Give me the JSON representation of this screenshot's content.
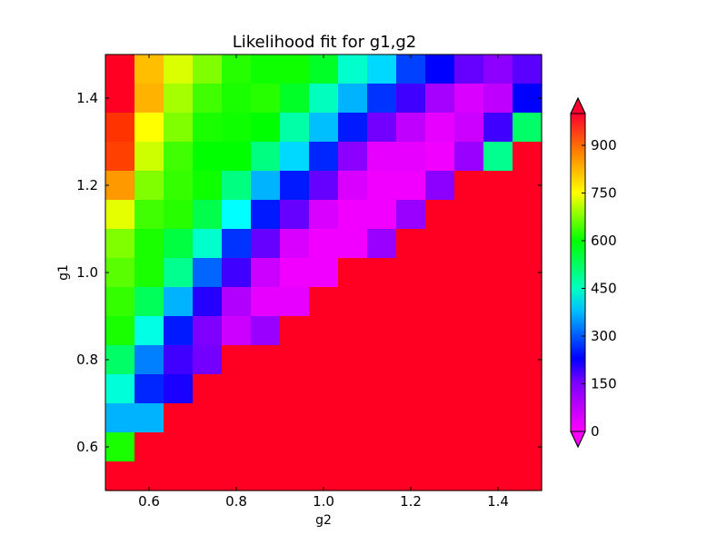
{
  "chart_data": {
    "type": "heatmap",
    "title": "Likelihood fit for g1,g2",
    "xlabel": "g2",
    "ylabel": "g1",
    "xlim": [
      0.5,
      1.5
    ],
    "ylim": [
      0.5,
      1.5
    ],
    "x_ticks": [
      "0.6",
      "0.8",
      "1.0",
      "1.2",
      "1.4"
    ],
    "y_ticks": [
      "0.6",
      "0.8",
      "1.0",
      "1.2",
      "1.4"
    ],
    "colorbar": {
      "min": 0,
      "max": 1000,
      "ticks": [
        "0",
        "150",
        "300",
        "450",
        "600",
        "750",
        "900"
      ],
      "colormap": "gist_rainbow_r",
      "extend": "both"
    },
    "grid": false,
    "g2_values": [
      0.533,
      0.6,
      0.667,
      0.733,
      0.8,
      0.867,
      0.933,
      1.0,
      1.067,
      1.133,
      1.2,
      1.267,
      1.333,
      1.4,
      1.467
    ],
    "g1_values": [
      1.467,
      1.4,
      1.333,
      1.267,
      1.2,
      1.133,
      1.067,
      1.0,
      0.933,
      0.867,
      0.8,
      0.733,
      0.667,
      0.6,
      0.533
    ],
    "z": [
      [
        1000,
        850,
        770,
        700,
        630,
        610,
        610,
        570,
        440,
        370,
        250,
        200,
        120,
        90,
        130
      ],
      [
        990,
        860,
        730,
        650,
        620,
        630,
        570,
        450,
        340,
        240,
        150,
        70,
        30,
        50,
        200
      ],
      [
        960,
        800,
        700,
        620,
        610,
        600,
        470,
        350,
        220,
        110,
        50,
        20,
        40,
        150,
        520
      ],
      [
        950,
        760,
        650,
        600,
        600,
        500,
        370,
        230,
        90,
        20,
        20,
        10,
        80,
        490,
        1000
      ],
      [
        880,
        700,
        640,
        610,
        500,
        340,
        220,
        120,
        30,
        10,
        10,
        90,
        1000,
        1000,
        1000
      ],
      [
        780,
        650,
        630,
        540,
        400,
        220,
        120,
        30,
        10,
        10,
        80,
        1000,
        1000,
        1000,
        1000
      ],
      [
        700,
        620,
        550,
        440,
        240,
        120,
        30,
        10,
        10,
        80,
        1000,
        1000,
        1000,
        1000,
        1000
      ],
      [
        670,
        620,
        490,
        280,
        150,
        40,
        10,
        10,
        1000,
        1000,
        1000,
        1000,
        1000,
        1000,
        1000
      ],
      [
        640,
        530,
        340,
        170,
        60,
        20,
        20,
        1000,
        1000,
        1000,
        1000,
        1000,
        1000,
        1000,
        1000
      ],
      [
        620,
        420,
        220,
        100,
        40,
        80,
        1000,
        1000,
        1000,
        1000,
        1000,
        1000,
        1000,
        1000,
        1000
      ],
      [
        520,
        300,
        150,
        110,
        1000,
        1000,
        1000,
        1000,
        1000,
        1000,
        1000,
        1000,
        1000,
        1000,
        1000
      ],
      [
        430,
        230,
        180,
        1000,
        1000,
        1000,
        1000,
        1000,
        1000,
        1000,
        1000,
        1000,
        1000,
        1000,
        1000
      ],
      [
        340,
        340,
        1000,
        1000,
        1000,
        1000,
        1000,
        1000,
        1000,
        1000,
        1000,
        1000,
        1000,
        1000,
        1000
      ],
      [
        620,
        1000,
        1000,
        1000,
        1000,
        1000,
        1000,
        1000,
        1000,
        1000,
        1000,
        1000,
        1000,
        1000,
        1000
      ],
      [
        1000,
        1000,
        1000,
        1000,
        1000,
        1000,
        1000,
        1000,
        1000,
        1000,
        1000,
        1000,
        1000,
        1000,
        1000
      ]
    ]
  }
}
